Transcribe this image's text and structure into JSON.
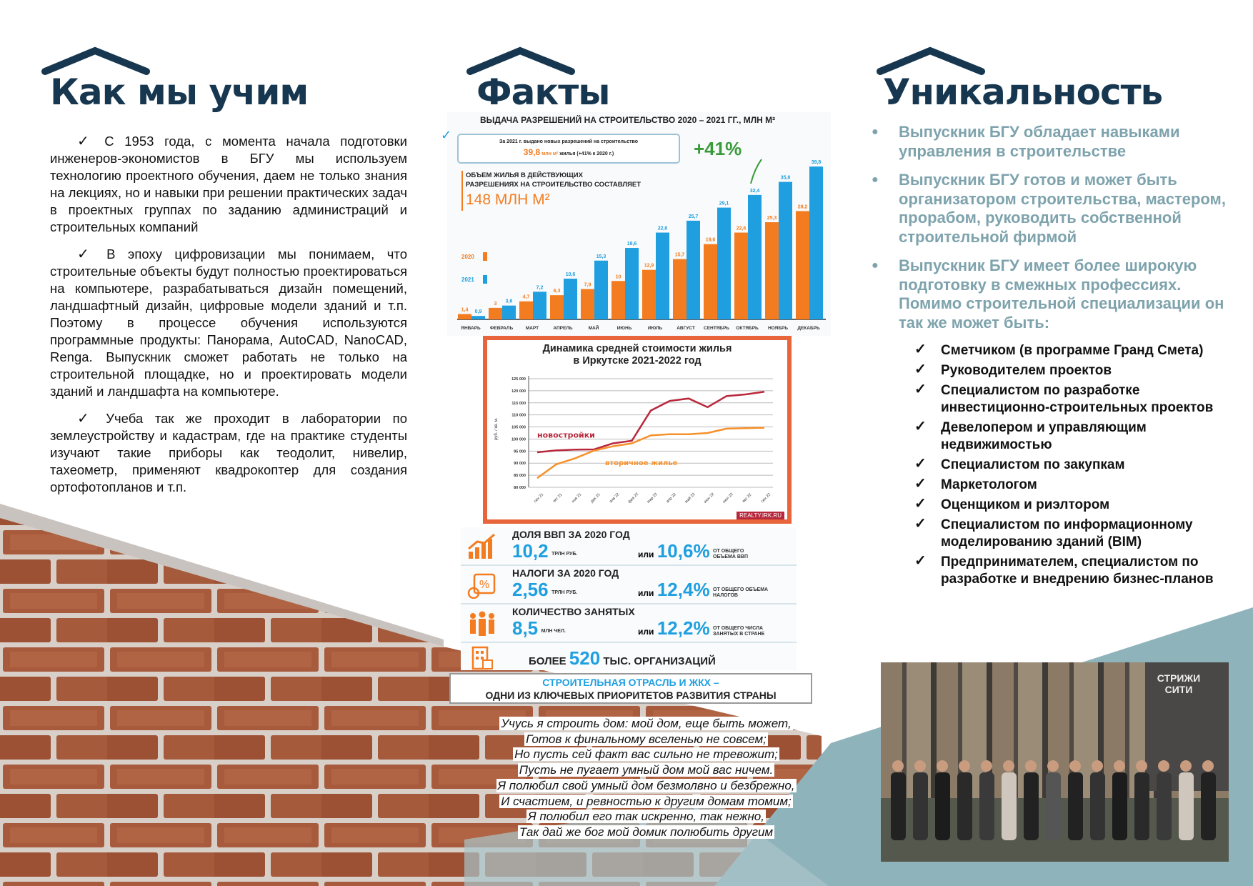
{
  "colors": {
    "title": "#16374f",
    "accent_blue": "#1f9fe0",
    "accent_orange": "#f47c20",
    "teal": "#8fb3bb",
    "bullet_text": "#7ea3ad",
    "brick": "#a85a3c"
  },
  "left": {
    "title": "Как мы учим",
    "paragraphs": [
      "С 1953 года, с момента начала подготовки инженеров-экономистов в БГУ мы используем технологию проектного обучения, даем не только знания на лекциях, но и навыки при решении практических задач в проектных группах по заданию администраций и строительных компаний",
      "В эпоху цифровизации мы понимаем, что строительные объекты будут полностью проектироваться на компьютере, разрабатываться дизайн помещений, ландшафтный дизайн, цифровые модели зданий и т.п. Поэтому в процессе обучения используются программные продукты: Панорама, AutoCAD, NanoCAD, Renga. Выпускник сможет работать не только на строительной площадке, но и проектировать модели зданий и ландшафта на компьютере.",
      "Учеба так же проходит в лаборатории по землеустройству и кадастрам, где на практике студенты изучают такие приборы как теодолит, нивелир, тахеометр, применяют квадрокоптер для создания ортофотопланов и т.п."
    ]
  },
  "middle": {
    "title": "Факты",
    "poem": [
      "Учусь я строить дом: мой дом, еще быть может,",
      "Готов к финальному вселенью не совсем;",
      "Но пусть сей факт вас сильно не тревожит;",
      "Пусть не пугает умный дом мой вас ничем.",
      "Я полюбил свой умный дом безмолвно и безбрежно,",
      "И счастием, и ревностью к другим домам томим;",
      "Я полюбил его так искренно, так нежно,",
      "Так дай же бог мой домик полюбить другим"
    ],
    "stats": {
      "gdp": {
        "label": "ДОЛЯ ВВП ЗА 2020 ГОД",
        "value": "10,2",
        "unit": "ТРЛН РУБ.",
        "or": "или",
        "pct": "10,6%",
        "pct_note": "ОТ ОБЩЕГО ОБЪЕМА ВВП",
        "icon": "growth-chart-icon"
      },
      "tax": {
        "label": "НАЛОГИ ЗА 2020 ГОД",
        "value": "2,56",
        "unit": "ТРЛН РУБ.",
        "or": "или",
        "pct": "12,4%",
        "pct_note": "ОТ ОБЩЕГО ОБЪЕМА НАЛОГОВ",
        "icon": "tax-percent-icon"
      },
      "jobs": {
        "label": "КОЛИЧЕСТВО ЗАНЯТЫХ",
        "value": "8,5",
        "unit": "МЛН ЧЕЛ.",
        "or": "или",
        "pct": "12,2%",
        "pct_note": "ОТ ОБЩЕГО ЧИСЛА ЗАНЯТЫХ В СТРАНЕ",
        "icon": "people-icon"
      },
      "orgs": {
        "pre": "БОЛЕЕ",
        "value": "520",
        "post": "ТЫС. ОРГАНИЗАЦИЙ",
        "icon": "building-icon"
      },
      "banner1": "СТРОИТЕЛЬНАЯ ОТРАСЛЬ И ЖКХ –",
      "banner2": "ОДНИ ИЗ КЛЮЧЕВЫХ ПРИОРИТЕТОВ РАЗВИТИЯ СТРАНЫ"
    }
  },
  "chart_data": [
    {
      "type": "bar",
      "title": "ВЫДАЧА РАЗРЕШЕНИЙ НА СТРОИТЕЛЬСТВО 2020 – 2021 ГГ., МЛН М²",
      "note_line1": "За 2021 г. выдано новых разрешений на строительство",
      "note_value": "39,8",
      "note_unit": "млн м²",
      "note_line2": "жилья (+41% к 2020 г.)",
      "volume_label1": "ОБЪЕМ ЖИЛЬЯ В ДЕЙСТВУЮЩИХ",
      "volume_label2": "РАЗРЕШЕНИЯХ НА СТРОИТЕЛЬСТВО СОСТАВЛЯЕТ",
      "volume_value": "148 МЛН М²",
      "growth": "+41%",
      "categories": [
        "ЯНВАРЬ",
        "ФЕВРАЛЬ",
        "МАРТ",
        "АПРЕЛЬ",
        "МАЙ",
        "ИЮНЬ",
        "ИЮЛЬ",
        "АВГУСТ",
        "СЕНТЯБРЬ",
        "ОКТЯБРЬ",
        "НОЯБРЬ",
        "ДЕКАБРЬ"
      ],
      "series": [
        {
          "name": "2020",
          "color": "#f47c20",
          "values": [
            1.4,
            3.0,
            4.7,
            6.3,
            7.9,
            10,
            12.9,
            15.7,
            19.6,
            22.6,
            25.3,
            28.2
          ]
        },
        {
          "name": "2021",
          "color": "#1f9fe0",
          "values": [
            0.9,
            3.6,
            7.2,
            10.6,
            15.3,
            18.6,
            22.6,
            25.7,
            29.1,
            32.4,
            35.8,
            39.8
          ]
        }
      ],
      "legend": "left",
      "ylim": [
        0,
        40
      ]
    },
    {
      "type": "line",
      "title1": "Динамика средней стоимости жилья",
      "title2": "в Иркутске 2021-2022 год",
      "ylabel": "руб. / кв. м.",
      "source": "REALTY.IRK.RU",
      "ylim": [
        80000,
        125000
      ],
      "yticks": [
        "80 000",
        "85 000",
        "90 000",
        "95 000",
        "100 000",
        "105 000",
        "110 000",
        "115 000",
        "120 000",
        "125 000"
      ],
      "categories": [
        "сен 21",
        "окт 21",
        "ноя 21",
        "дек 21",
        "янв 22",
        "фев 22",
        "мар 22",
        "апр 22",
        "май 22",
        "июн 22",
        "июл 22",
        "авг 22",
        "сен 22"
      ],
      "series": [
        {
          "name": "новостройки",
          "color": "#b8283c",
          "values": [
            94500,
            95300,
            95600,
            95700,
            98200,
            99300,
            111800,
            115800,
            116800,
            113200,
            117800,
            118500,
            119600
          ]
        },
        {
          "name": "вторичное жилье",
          "color": "#f7902a",
          "values": [
            83800,
            89500,
            92000,
            95200,
            97000,
            98200,
            101500,
            102000,
            102000,
            102500,
            104300,
            104500,
            104700
          ]
        }
      ],
      "grid": true
    }
  ],
  "right": {
    "title": "Уникальность",
    "bullets": [
      "Выпускник БГУ обладает навыками управления в строительстве",
      "Выпускник БГУ готов и может быть организатором строительства, мастером, прорабом, руководить собственной строительной фирмой",
      "Выпускник БГУ имеет более широкую подготовку в смежных профессиях. Помимо строительной специализации он так же может быть:"
    ],
    "checklist": [
      "Сметчиком (в программе Гранд Смета)",
      "Руководителем проектов",
      "Специалистом по разработке инвестиционно-строительных проектов",
      "Девелопером и управляющим недвижимостью",
      "Специалистом по закупкам",
      "Маркетологом",
      "Оценщиком и риэлтором",
      "Специалистом по информационному моделированию зданий (BIM)",
      "Предпринимателем, специалистом по разработке и внедрению бизнес-планов"
    ],
    "photo_sign": "СТРИЖИ СИТИ"
  }
}
